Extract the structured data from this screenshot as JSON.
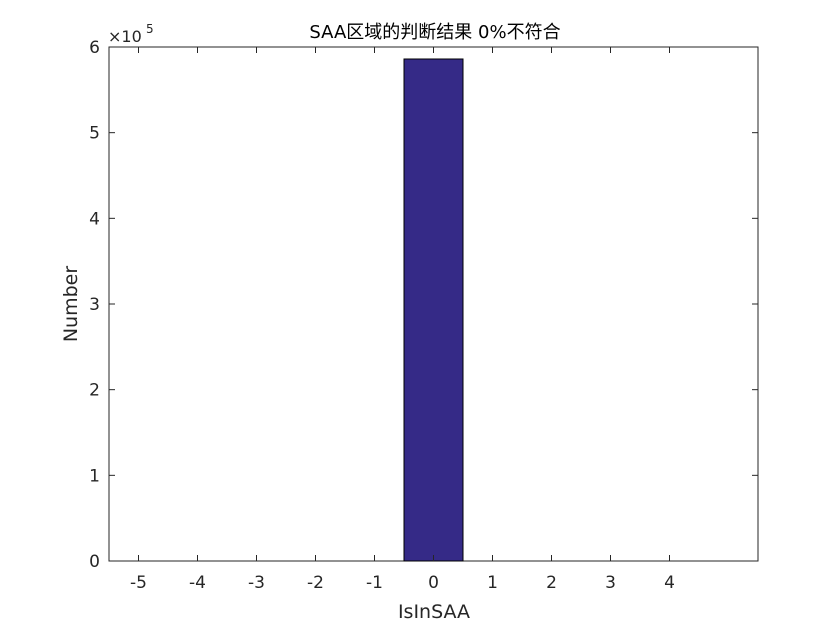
{
  "chart_data": {
    "type": "bar",
    "title": "SAA区域的判断结果 0%不符合",
    "xlabel": "IsInSAA",
    "ylabel": "Number",
    "y_exponent_label": "×10",
    "y_exponent_power": "5",
    "categories": [
      "-5",
      "-4",
      "-3",
      "-2",
      "-1",
      "0",
      "1",
      "2",
      "3",
      "4"
    ],
    "x": [
      -5,
      -4,
      -3,
      -2,
      -1,
      0,
      1,
      2,
      3,
      4
    ],
    "values": [
      0,
      0,
      0,
      0,
      0,
      586000,
      0,
      0,
      0,
      0
    ],
    "xlim": [
      -5.5,
      5.5
    ],
    "ylim": [
      0,
      600000
    ],
    "yticks": [
      0,
      100000,
      200000,
      300000,
      400000,
      500000,
      600000
    ],
    "ytick_labels": [
      "0",
      "1",
      "2",
      "3",
      "4",
      "5",
      "6"
    ],
    "xtick_labels": [
      "-5",
      "-4",
      "-3",
      "-2",
      "-1",
      "0",
      "1",
      "2",
      "3",
      "4"
    ],
    "bar_color": "#352a87",
    "grid": false,
    "legend": "none"
  }
}
